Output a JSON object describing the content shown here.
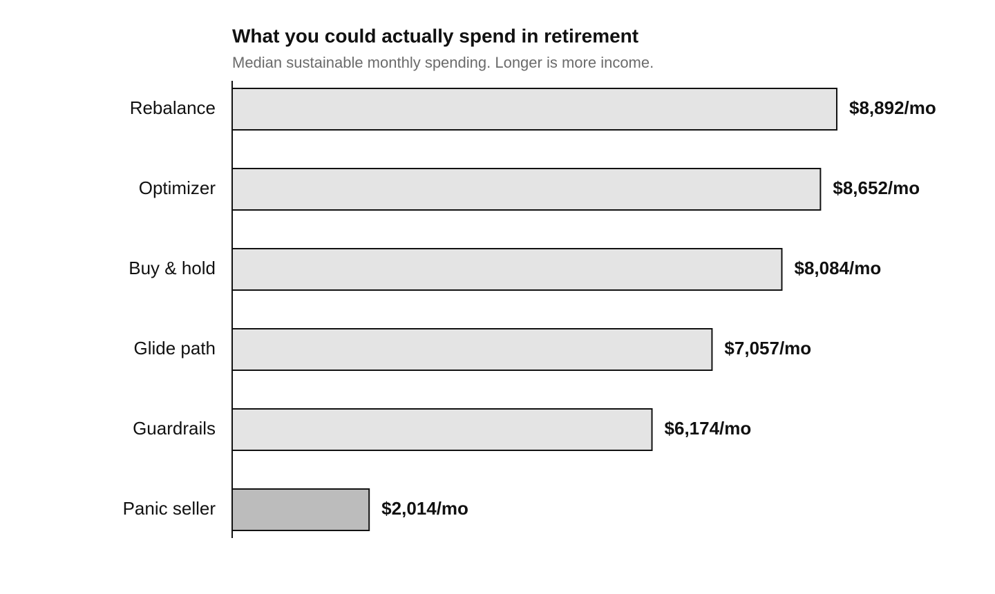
{
  "chart_data": {
    "type": "bar",
    "orientation": "horizontal",
    "title": "What you could actually spend in retirement",
    "subtitle": "Median sustainable monthly spending. Longer is more income.",
    "categories": [
      "Rebalance",
      "Optimizer",
      "Buy & hold",
      "Glide path",
      "Guardrails",
      "Panic seller"
    ],
    "values": [
      8892,
      8652,
      8084,
      7057,
      6174,
      2014
    ],
    "value_labels": [
      "$8,892/mo",
      "$8,652/mo",
      "$8,084/mo",
      "$7,057/mo",
      "$6,174/mo",
      "$2,014/mo"
    ],
    "colors": [
      "#e4e4e4",
      "#e4e4e4",
      "#e4e4e4",
      "#e4e4e4",
      "#e4e4e4",
      "#bcbcbc"
    ]
  }
}
